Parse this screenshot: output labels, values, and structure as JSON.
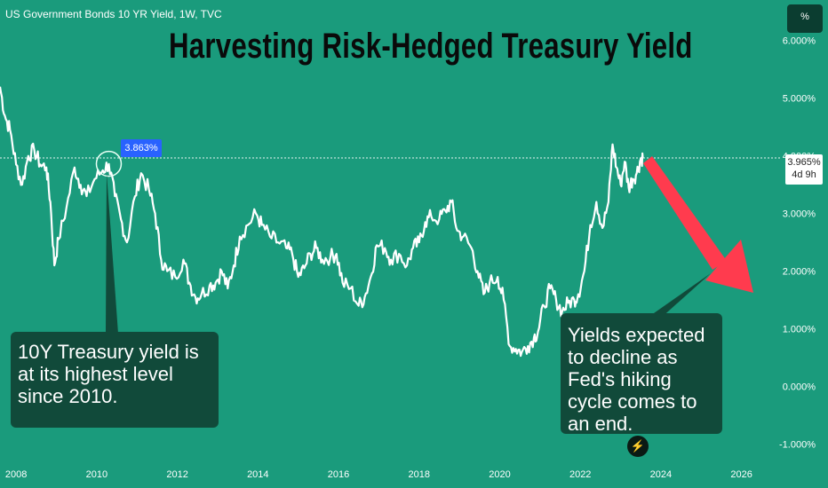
{
  "header": {
    "symbol_label": "US Government Bonds 10 YR Yield, 1W, TVC",
    "unit_button": "%"
  },
  "title": "Harvesting Risk-Hedged Treasury Yield",
  "current": {
    "price_label": "3.965%",
    "countdown": "4d 9h"
  },
  "highlight_label": "3.863%",
  "annotations": {
    "left": "10Y Treasury yield is at its highest level since 2010.",
    "right": "Yields expected to decline as Fed's hiking cycle comes to an end."
  },
  "bolt_icon": "lightning-icon",
  "colors": {
    "background": "#1a9b7c",
    "line": "#ffffff",
    "callout_bg": "#114a3a",
    "arrow": "#ff3b4e",
    "highlight_badge": "#2962ff"
  },
  "chart_data": {
    "type": "line",
    "title": "Harvesting Risk-Hedged Treasury Yield",
    "xlabel": "",
    "ylabel": "",
    "x_ticks": [
      "2008",
      "2010",
      "2012",
      "2014",
      "2016",
      "2018",
      "2020",
      "2022",
      "2024",
      "2026"
    ],
    "y_ticks": [
      "6.000%",
      "5.000%",
      "4.000%",
      "3.000%",
      "2.000%",
      "1.000%",
      "0.000%",
      "-1.000%"
    ],
    "xlim": [
      2007.6,
      2027.0
    ],
    "ylim": [
      -1.3,
      6.55
    ],
    "grid": false,
    "series": [
      {
        "values": [
          [
            2007.6,
            5.2
          ],
          [
            2007.72,
            4.7
          ],
          [
            2007.85,
            4.45
          ],
          [
            2008.0,
            3.85
          ],
          [
            2008.15,
            3.5
          ],
          [
            2008.3,
            4.0
          ],
          [
            2008.45,
            4.1
          ],
          [
            2008.6,
            3.85
          ],
          [
            2008.75,
            3.8
          ],
          [
            2008.85,
            3.2
          ],
          [
            2008.95,
            2.1
          ],
          [
            2009.05,
            2.55
          ],
          [
            2009.25,
            3.1
          ],
          [
            2009.45,
            3.8
          ],
          [
            2009.6,
            3.5
          ],
          [
            2009.75,
            3.3
          ],
          [
            2009.95,
            3.6
          ],
          [
            2010.15,
            3.75
          ],
          [
            2010.3,
            3.86
          ],
          [
            2010.45,
            3.3
          ],
          [
            2010.6,
            2.9
          ],
          [
            2010.75,
            2.5
          ],
          [
            2010.95,
            3.3
          ],
          [
            2011.1,
            3.7
          ],
          [
            2011.3,
            3.4
          ],
          [
            2011.45,
            3.0
          ],
          [
            2011.6,
            2.2
          ],
          [
            2011.75,
            2.0
          ],
          [
            2011.95,
            1.9
          ],
          [
            2012.15,
            2.2
          ],
          [
            2012.3,
            1.8
          ],
          [
            2012.45,
            1.55
          ],
          [
            2012.6,
            1.6
          ],
          [
            2012.8,
            1.75
          ],
          [
            2012.95,
            1.8
          ],
          [
            2013.1,
            2.0
          ],
          [
            2013.25,
            1.7
          ],
          [
            2013.4,
            2.1
          ],
          [
            2013.55,
            2.6
          ],
          [
            2013.75,
            2.8
          ],
          [
            2013.95,
            3.0
          ],
          [
            2014.1,
            2.8
          ],
          [
            2014.3,
            2.6
          ],
          [
            2014.5,
            2.5
          ],
          [
            2014.7,
            2.4
          ],
          [
            2014.85,
            2.3
          ],
          [
            2015.0,
            1.9
          ],
          [
            2015.15,
            2.05
          ],
          [
            2015.3,
            2.3
          ],
          [
            2015.45,
            2.4
          ],
          [
            2015.6,
            2.2
          ],
          [
            2015.8,
            2.25
          ],
          [
            2015.95,
            2.3
          ],
          [
            2016.1,
            1.8
          ],
          [
            2016.3,
            1.7
          ],
          [
            2016.5,
            1.4
          ],
          [
            2016.65,
            1.55
          ],
          [
            2016.8,
            1.9
          ],
          [
            2016.95,
            2.45
          ],
          [
            2017.15,
            2.4
          ],
          [
            2017.3,
            2.2
          ],
          [
            2017.5,
            2.3
          ],
          [
            2017.7,
            2.1
          ],
          [
            2017.85,
            2.4
          ],
          [
            2018.0,
            2.5
          ],
          [
            2018.15,
            2.85
          ],
          [
            2018.3,
            2.95
          ],
          [
            2018.5,
            2.9
          ],
          [
            2018.65,
            3.05
          ],
          [
            2018.8,
            3.2
          ],
          [
            2018.95,
            2.7
          ],
          [
            2019.1,
            2.6
          ],
          [
            2019.3,
            2.4
          ],
          [
            2019.45,
            2.0
          ],
          [
            2019.6,
            1.6
          ],
          [
            2019.75,
            1.8
          ],
          [
            2019.95,
            1.9
          ],
          [
            2020.1,
            1.5
          ],
          [
            2020.25,
            0.7
          ],
          [
            2020.4,
            0.65
          ],
          [
            2020.55,
            0.6
          ],
          [
            2020.7,
            0.7
          ],
          [
            2020.85,
            0.85
          ],
          [
            2020.95,
            0.95
          ],
          [
            2021.1,
            1.4
          ],
          [
            2021.25,
            1.7
          ],
          [
            2021.4,
            1.5
          ],
          [
            2021.55,
            1.3
          ],
          [
            2021.7,
            1.45
          ],
          [
            2021.85,
            1.5
          ],
          [
            2021.95,
            1.6
          ],
          [
            2022.1,
            2.0
          ],
          [
            2022.25,
            2.8
          ],
          [
            2022.4,
            3.2
          ],
          [
            2022.55,
            2.75
          ],
          [
            2022.7,
            3.2
          ],
          [
            2022.8,
            4.2
          ],
          [
            2022.9,
            3.8
          ],
          [
            2023.0,
            3.5
          ],
          [
            2023.1,
            3.9
          ],
          [
            2023.2,
            3.45
          ],
          [
            2023.3,
            3.6
          ],
          [
            2023.4,
            3.7
          ],
          [
            2023.5,
            3.95
          ],
          [
            2023.55,
            3.965
          ]
        ]
      }
    ],
    "current_value": 3.965,
    "highlight_value": 3.863,
    "annotations": [
      "10Y Treasury yield is at its highest level since 2010.",
      "Yields expected to decline as Fed's hiking cycle comes to an end."
    ]
  }
}
